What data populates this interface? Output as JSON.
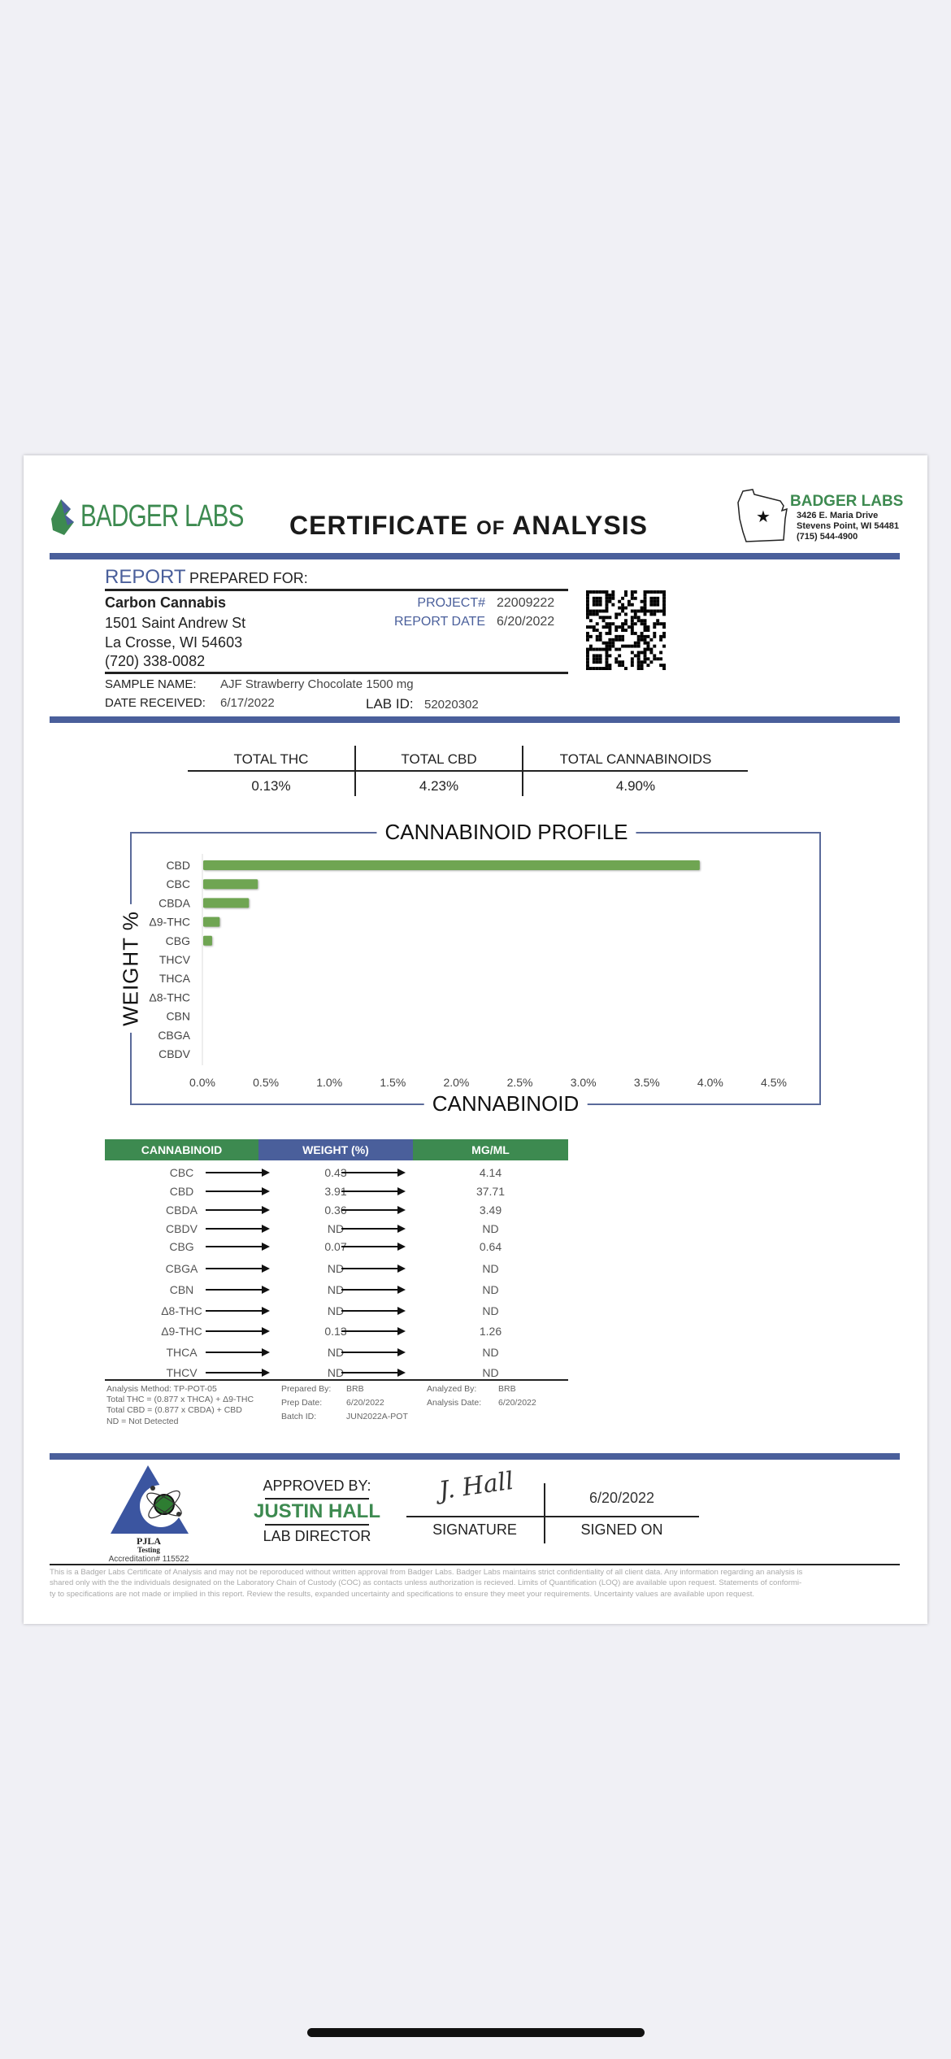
{
  "header": {
    "logo_text": "BADGER LABS",
    "title_a": "CERTIFICATE",
    "title_of": "of",
    "title_b": "ANALYSIS",
    "lab_name": "BADGER LABS",
    "lab_address1": "3426 E. Maria Drive",
    "lab_address2": "Stevens Point, WI 54481",
    "lab_phone": "(715) 544-4900"
  },
  "report": {
    "report_word": "REPORT",
    "prepared_for": "PREPARED FOR:",
    "client_name": "Carbon Cannabis",
    "client_address1": "1501 Saint Andrew St",
    "client_address2": "La Crosse, WI 54603",
    "client_phone": "(720) 338-0082",
    "project_label": "PROJECT#",
    "project_value": "22009222",
    "report_date_label": "REPORT DATE",
    "report_date_value": "6/20/2022",
    "sample_name_label": "SAMPLE NAME:",
    "sample_name_value": "AJF Strawberry Chocolate 1500 mg",
    "date_received_label": "DATE RECEIVED:",
    "date_received_value": "6/17/2022",
    "lab_id_label": "LAB ID:",
    "lab_id_value": "52020302"
  },
  "totals": [
    {
      "label": "TOTAL THC",
      "value": "0.13%"
    },
    {
      "label": "TOTAL CBD",
      "value": "4.23%"
    },
    {
      "label": "TOTAL CANNABINOIDS",
      "value": "4.90%"
    }
  ],
  "chart_data": {
    "type": "bar",
    "orientation": "horizontal",
    "title": "CANNABINOID PROFILE",
    "xlabel": "CANNABINOID",
    "ylabel": "WEIGHT %",
    "categories": [
      "CBD",
      "CBC",
      "CBDA",
      "Δ9-THC",
      "CBG",
      "THCV",
      "THCA",
      "Δ8-THC",
      "CBN",
      "CBGA",
      "CBDV"
    ],
    "values": [
      3.91,
      0.43,
      0.36,
      0.13,
      0.07,
      0,
      0,
      0,
      0,
      0,
      0
    ],
    "xlim": [
      0,
      4.5
    ],
    "x_ticks": [
      "0.0%",
      "0.5%",
      "1.0%",
      "1.5%",
      "2.0%",
      "2.5%",
      "3.0%",
      "3.5%",
      "4.0%",
      "4.5%"
    ],
    "grid": false,
    "bar_color": "#6fa552"
  },
  "table": {
    "headers": [
      "CANNABINOID",
      "WEIGHT (%)",
      "MG/ML"
    ],
    "header_colors": [
      "#3d8a50",
      "#4a5f9b",
      "#3d8a50"
    ],
    "rows": [
      [
        "CBC",
        "0.43",
        "4.14"
      ],
      [
        "CBD",
        "3.91",
        "37.71"
      ],
      [
        "CBDA",
        "0.36",
        "3.49"
      ],
      [
        "CBDV",
        "ND",
        "ND"
      ],
      [
        "CBG",
        "0.07",
        "0.64"
      ],
      [
        "CBGA",
        "ND",
        "ND"
      ],
      [
        "CBN",
        "ND",
        "ND"
      ],
      [
        "Δ8-THC",
        "ND",
        "ND"
      ],
      [
        "Δ9-THC",
        "0.13",
        "1.26"
      ],
      [
        "THCA",
        "ND",
        "ND"
      ],
      [
        "THCV",
        "ND",
        "ND"
      ]
    ]
  },
  "notes": {
    "method": "Analysis Method: TP-POT-05",
    "thc_formula": "Total THC = (0.877 x THCA) + Δ9-THC",
    "cbd_formula": "Total CBD = (0.877 x CBDA) + CBD",
    "nd": "ND = Not Detected",
    "prepared_by_label": "Prepared By:",
    "prepared_by": "BRB",
    "prep_date_label": "Prep Date:",
    "prep_date": "6/20/2022",
    "batch_label": "Batch ID:",
    "batch": "JUN2022A-POT",
    "analyzed_by_label": "Analyzed By:",
    "analyzed_by": "BRB",
    "analysis_date_label": "Analysis Date:",
    "analysis_date": "6/20/2022"
  },
  "approval": {
    "pjla": "PJLA",
    "pjla_sub": "Testing",
    "accreditation": "Accreditation# 115522",
    "approved_by": "APPROVED BY:",
    "name": "JUSTIN HALL",
    "role": "LAB DIRECTOR",
    "signature_script": "J. Hall",
    "signed_date": "6/20/2022",
    "signature_label": "SIGNATURE",
    "signed_on_label": "SIGNED ON"
  },
  "disclaimer": [
    "This is a Badger Labs Certificate of Analysis and may not be reporoduced without written approval from Badger Labs. Badger Labs maintains strict confidentiality of all client data. Any information regarding an analysis is",
    "shared only with the the individuals designated on the Laboratory Chain of Custody (COC) as contacts unless authorization is recieved. Limits of Quantification (LOQ) are available upon request. Statements of conformi-",
    "ty to specifications are not made or implied in this report. Review the results, expanded uncertainty and specifications to ensure they meet your requirements. Uncertainty values are available upon request."
  ]
}
